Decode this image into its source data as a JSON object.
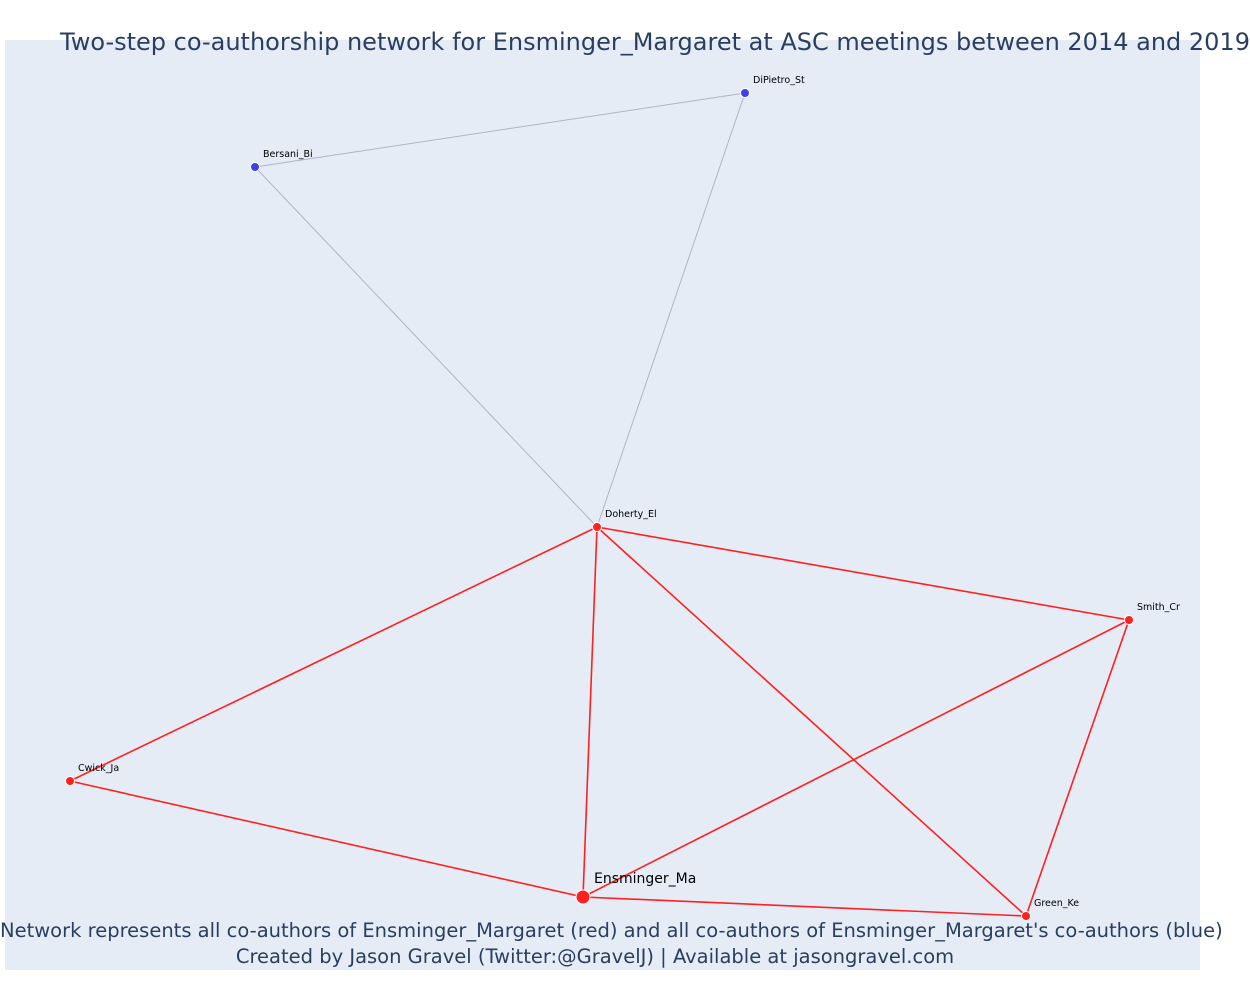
{
  "title": "Two-step co-authorship network for Ensminger_Margaret at ASC meetings between 2014 and 2019",
  "caption": {
    "line1": "Network represents all co-authors of Ensminger_Margaret (red) and all co-authors of Ensminger_Margaret's co-authors (blue)",
    "line2": "Created by Jason Gravel (Twitter:@GravelJ) | Available at jasongravel.com"
  },
  "colors": {
    "background": "#e5ecf6",
    "coauthor": "#ff2020",
    "second_step": "#4040e8",
    "second_step_edge": "#b0b4c8",
    "title_text": "#2a3f5f"
  },
  "nodes": [
    {
      "id": "Ensminger_Ma",
      "label": "Ensminger_Ma",
      "group": "focal"
    },
    {
      "id": "Doherty_El",
      "label": "Doherty_El",
      "group": "coauthor"
    },
    {
      "id": "Smith_Cr",
      "label": "Smith_Cr",
      "group": "coauthor"
    },
    {
      "id": "Cwick_Ja",
      "label": "Cwick_Ja",
      "group": "coauthor"
    },
    {
      "id": "Green_Ke",
      "label": "Green_Ke",
      "group": "coauthor"
    },
    {
      "id": "Bersani_Bi",
      "label": "Bersani_Bi",
      "group": "second_step"
    },
    {
      "id": "DiPietro_St",
      "label": "DiPietro_St",
      "group": "second_step"
    }
  ],
  "edges": [
    {
      "source": "Bersani_Bi",
      "target": "DiPietro_St",
      "type": "second_step"
    },
    {
      "source": "Bersani_Bi",
      "target": "Doherty_El",
      "type": "second_step"
    },
    {
      "source": "DiPietro_St",
      "target": "Doherty_El",
      "type": "second_step"
    },
    {
      "source": "Doherty_El",
      "target": "Smith_Cr",
      "type": "coauthor"
    },
    {
      "source": "Doherty_El",
      "target": "Cwick_Ja",
      "type": "coauthor"
    },
    {
      "source": "Doherty_El",
      "target": "Ensminger_Ma",
      "type": "coauthor"
    },
    {
      "source": "Doherty_El",
      "target": "Green_Ke",
      "type": "coauthor"
    },
    {
      "source": "Smith_Cr",
      "target": "Ensminger_Ma",
      "type": "coauthor"
    },
    {
      "source": "Smith_Cr",
      "target": "Green_Ke",
      "type": "coauthor"
    },
    {
      "source": "Cwick_Ja",
      "target": "Ensminger_Ma",
      "type": "coauthor"
    },
    {
      "source": "Ensminger_Ma",
      "target": "Green_Ke",
      "type": "coauthor"
    }
  ]
}
